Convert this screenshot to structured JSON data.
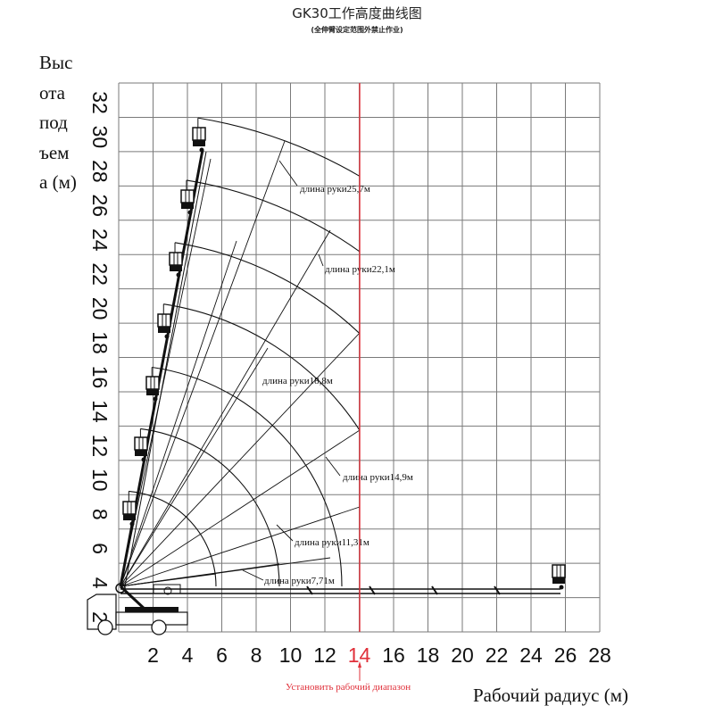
{
  "header": {
    "title": "GK30工作高度曲线图",
    "subtitle": "(全伸臂设定范围外禁止作业)"
  },
  "axes": {
    "y_label_lines": [
      "Выс",
      "ота",
      "под",
      "ъем",
      "а (м)"
    ],
    "x_label": "Рабочий радиус (м)",
    "range_note": "Установить рабочий диапазон"
  },
  "colors": {
    "grid": "#7a7a7a",
    "limit_line": "#e0303a",
    "drawing": "#111111"
  },
  "chart_data": {
    "type": "line",
    "title": "GK30工作高度曲线图",
    "subtitle": "(全伸臂设定范围外禁止作业)",
    "xlabel": "Рабочий радиус (м)",
    "ylabel": "Высота подъема (м)",
    "xlim": [
      0,
      28
    ],
    "ylim": [
      0,
      32
    ],
    "x_ticks": [
      "2",
      "4",
      "6",
      "8",
      "10",
      "12",
      "14",
      "16",
      "18",
      "20",
      "22",
      "24",
      "26",
      "28"
    ],
    "y_ticks": [
      "2",
      "4",
      "6",
      "8",
      "10",
      "12",
      "14",
      "16",
      "18",
      "20",
      "22",
      "24",
      "26",
      "28",
      "30",
      "32"
    ],
    "grid": true,
    "working_radius_limit": {
      "x": 14,
      "label": "Установить рабочий диапазон",
      "color": "#e0303a"
    },
    "series": [
      {
        "name": "длина руки25,7м",
        "boom_length_m": 25.7,
        "max_height_m": 30.0,
        "radius_at_limit_m": 14,
        "height_at_limit_m": 26.5
      },
      {
        "name": "длина руки22,1м",
        "boom_length_m": 22.1,
        "max_height_m": 26.2,
        "radius_at_limit_m": 14,
        "height_at_limit_m": 22.0
      },
      {
        "name": "длина руки18,8м",
        "boom_length_m": 18.8,
        "max_height_m": 22.5,
        "radius_at_limit_m": 14,
        "height_at_limit_m": 17.5
      },
      {
        "name": "длина руки14,9м",
        "boom_length_m": 14.9,
        "max_height_m": 18.7,
        "radius_at_limit_m": 14,
        "height_at_limit_m": 11.8
      },
      {
        "name": "длина руки11,31м",
        "boom_length_m": 11.31,
        "max_height_m": 15.2,
        "radius_at_limit_m": 12.8,
        "height_at_limit_m": 2.6
      },
      {
        "name": "длина руки7,71м",
        "boom_length_m": 7.71,
        "max_height_m": 11.5,
        "radius_at_limit_m": 9.2,
        "height_at_limit_m": 2.6
      }
    ],
    "horizontal_reach_m": 25.8,
    "pivot_height_m": 2.6
  },
  "arm_labels": [
    "длина руки25,7м",
    "длина руки22,1м",
    "длина руки18,8м",
    "длина руки14,9м",
    "длина руки11,31м",
    "длина руки7,71м"
  ]
}
